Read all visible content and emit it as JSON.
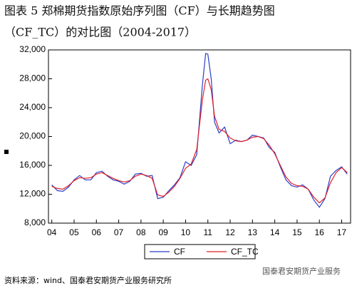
{
  "header": {
    "title_line1": "图表 5 郑棉期货指数原始序列图（CF）与长期趋势图",
    "title_line2": "（CF_TC）的对比图（2004-2017）"
  },
  "chart_data": {
    "type": "line",
    "x": [
      2004.0,
      2004.25,
      2004.5,
      2004.75,
      2005.0,
      2005.25,
      2005.5,
      2005.75,
      2006.0,
      2006.25,
      2006.5,
      2006.75,
      2007.0,
      2007.25,
      2007.5,
      2007.75,
      2008.0,
      2008.25,
      2008.5,
      2008.75,
      2009.0,
      2009.25,
      2009.5,
      2009.75,
      2010.0,
      2010.25,
      2010.5,
      2010.75,
      2010.9,
      2011.0,
      2011.15,
      2011.3,
      2011.5,
      2011.75,
      2012.0,
      2012.25,
      2012.5,
      2012.75,
      2013.0,
      2013.25,
      2013.5,
      2013.75,
      2014.0,
      2014.25,
      2014.5,
      2014.75,
      2015.0,
      2015.25,
      2015.5,
      2015.75,
      2016.0,
      2016.25,
      2016.5,
      2016.75,
      2017.0,
      2017.25
    ],
    "series": [
      {
        "name": "CF",
        "color": "#2b3fc9",
        "values": [
          13300,
          12500,
          12400,
          13000,
          14000,
          14600,
          14000,
          14000,
          15000,
          15200,
          14500,
          14000,
          13800,
          13400,
          13800,
          14800,
          14900,
          14500,
          14600,
          11400,
          11600,
          12500,
          13300,
          14300,
          16500,
          16000,
          17500,
          27000,
          31500,
          31400,
          28000,
          22000,
          20500,
          21300,
          19000,
          19500,
          19300,
          19500,
          20200,
          20000,
          19800,
          18500,
          17800,
          15800,
          14000,
          13200,
          13000,
          13300,
          12700,
          11200,
          10200,
          11400,
          14500,
          15300,
          15800,
          14800
        ]
      },
      {
        "name": "CF_TC",
        "color": "#e0202a",
        "values": [
          13100,
          12800,
          12700,
          13200,
          13900,
          14300,
          14200,
          14300,
          14800,
          15000,
          14600,
          14200,
          13900,
          13700,
          13900,
          14500,
          14800,
          14600,
          14200,
          11900,
          11700,
          12300,
          13100,
          14200,
          15600,
          16200,
          18200,
          25000,
          27800,
          28000,
          26500,
          22800,
          21000,
          20700,
          19800,
          19400,
          19300,
          19500,
          19900,
          20000,
          19700,
          18800,
          17600,
          16000,
          14400,
          13500,
          13200,
          13100,
          12700,
          11600,
          10800,
          11500,
          13600,
          15000,
          15700,
          15000
        ]
      }
    ],
    "xlim": [
      2003.85,
      2017.4
    ],
    "xticks": [
      {
        "value": 2004,
        "label": "04"
      },
      {
        "value": 2005,
        "label": "05"
      },
      {
        "value": 2006,
        "label": "06"
      },
      {
        "value": 2007,
        "label": "07"
      },
      {
        "value": 2008,
        "label": "08"
      },
      {
        "value": 2009,
        "label": "09"
      },
      {
        "value": 2010,
        "label": "10"
      },
      {
        "value": 2011,
        "label": "11"
      },
      {
        "value": 2012,
        "label": "12"
      },
      {
        "value": 2013,
        "label": "13"
      },
      {
        "value": 2014,
        "label": "14"
      },
      {
        "value": 2015,
        "label": "15"
      },
      {
        "value": 2016,
        "label": "16"
      },
      {
        "value": 2017,
        "label": "17"
      }
    ],
    "ylim": [
      8000,
      32000
    ],
    "yticks": [
      {
        "value": 8000,
        "label": "8,000"
      },
      {
        "value": 12000,
        "label": "12,000"
      },
      {
        "value": 16000,
        "label": "16,000"
      },
      {
        "value": 20000,
        "label": "20,000"
      },
      {
        "value": 24000,
        "label": "24,000"
      },
      {
        "value": 28000,
        "label": "28,000"
      },
      {
        "value": 32000,
        "label": "32,000"
      }
    ]
  },
  "footer": {
    "source": "资料来源：wind、国泰君安期货产业服务研究所",
    "watermark": "国泰君安期货产业服务"
  }
}
